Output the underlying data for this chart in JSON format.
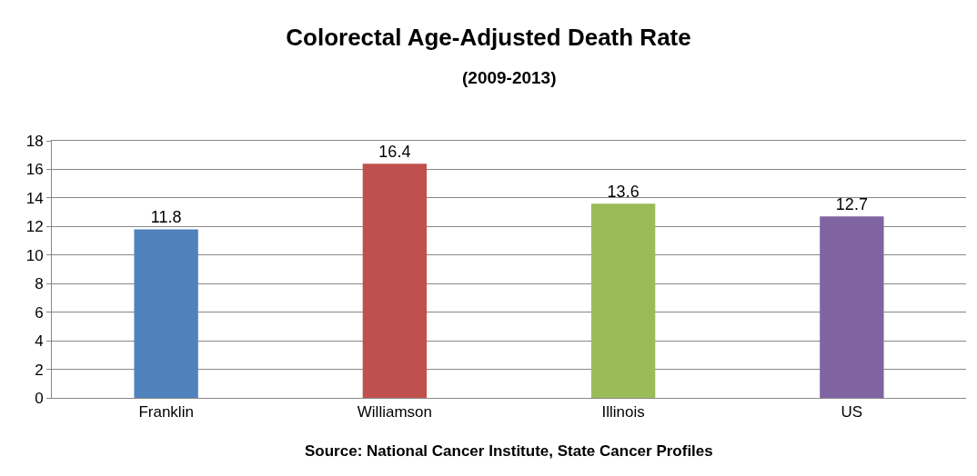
{
  "chart_data": {
    "type": "bar",
    "title": "Colorectal Age-Adjusted Death Rate",
    "subtitle": "(2009-2013)",
    "categories": [
      "Franklin",
      "Williamson",
      "Illinois",
      "US"
    ],
    "values": [
      11.8,
      16.4,
      13.6,
      12.7
    ],
    "colors": [
      "#4f81bd",
      "#c0504d",
      "#9bbb59",
      "#8064a2"
    ],
    "ylim": [
      0,
      18
    ],
    "yticks": [
      0,
      2,
      4,
      6,
      8,
      10,
      12,
      14,
      16,
      18
    ],
    "grid": "y",
    "data_labels": true,
    "annotations": [
      "Source: National Cancer Institute, State Cancer Profiles"
    ]
  }
}
